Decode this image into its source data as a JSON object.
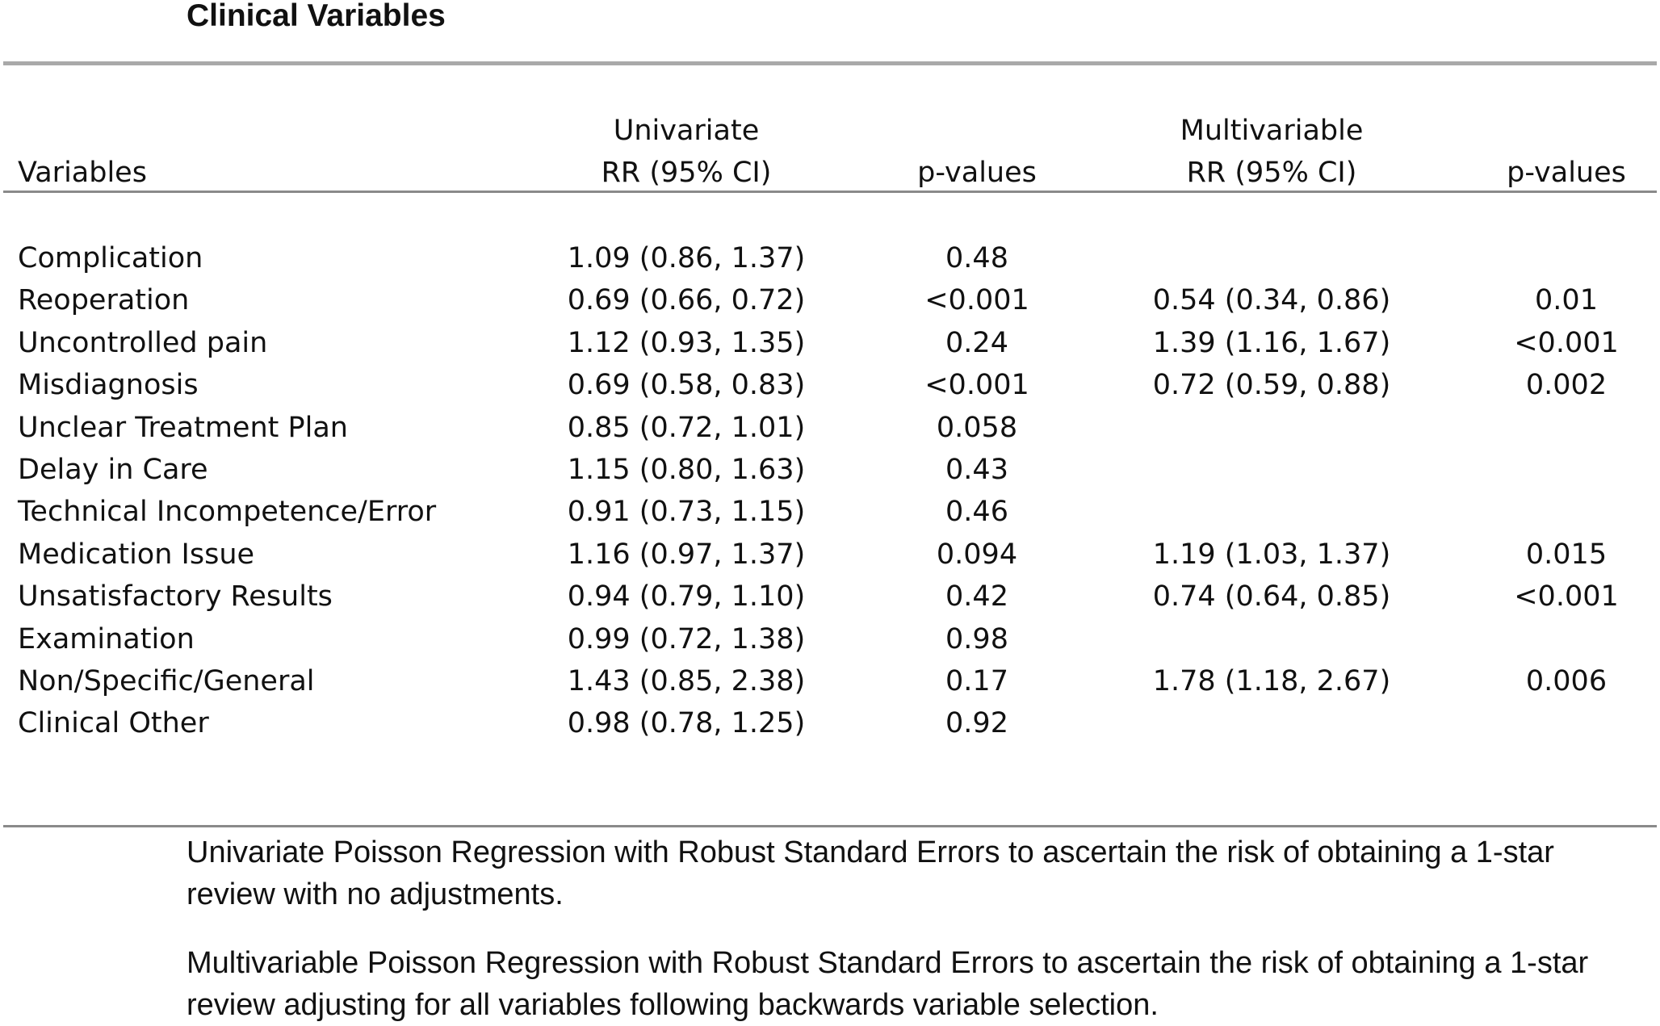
{
  "title": "Clinical Variables",
  "header": {
    "variables": "Variables",
    "univariate_top": "Univariate",
    "univariate_bottom": "RR (95% CI)",
    "p_values_1": "p-values",
    "multivariable_top": "Multivariable",
    "multivariable_bottom": "RR (95% CI)",
    "p_values_2": "p-values"
  },
  "rows": [
    {
      "name": "Complication",
      "uni": "1.09 (0.86, 1.37)",
      "p1": "0.48",
      "multi": "",
      "p2": ""
    },
    {
      "name": "Reoperation",
      "uni": "0.69 (0.66, 0.72)",
      "p1": "<0.001",
      "multi": "0.54 (0.34, 0.86)",
      "p2": "0.01"
    },
    {
      "name": "Uncontrolled pain",
      "uni": "1.12 (0.93, 1.35)",
      "p1": "0.24",
      "multi": "1.39 (1.16, 1.67)",
      "p2": "<0.001"
    },
    {
      "name": "Misdiagnosis",
      "uni": "0.69 (0.58, 0.83)",
      "p1": "<0.001",
      "multi": "0.72 (0.59, 0.88)",
      "p2": "0.002"
    },
    {
      "name": "Unclear Treatment Plan",
      "uni": "0.85 (0.72, 1.01)",
      "p1": "0.058",
      "multi": "",
      "p2": ""
    },
    {
      "name": "Delay in Care",
      "uni": "1.15 (0.80, 1.63)",
      "p1": "0.43",
      "multi": "",
      "p2": ""
    },
    {
      "name": "Technical Incompetence/Error",
      "uni": "0.91 (0.73, 1.15)",
      "p1": "0.46",
      "multi": "",
      "p2": ""
    },
    {
      "name": "Medication Issue",
      "uni": "1.16 (0.97, 1.37)",
      "p1": "0.094",
      "multi": "1.19 (1.03, 1.37)",
      "p2": "0.015"
    },
    {
      "name": "Unsatisfactory Results",
      "uni": "0.94 (0.79, 1.10)",
      "p1": "0.42",
      "multi": "0.74 (0.64, 0.85)",
      "p2": "<0.001"
    },
    {
      "name": "Examination",
      "uni": "0.99 (0.72, 1.38)",
      "p1": "0.98",
      "multi": "",
      "p2": ""
    },
    {
      "name": "Non/Specific/General",
      "uni": "1.43 (0.85, 2.38)",
      "p1": "0.17",
      "multi": "1.78 (1.18, 2.67)",
      "p2": "0.006"
    },
    {
      "name": "Clinical Other",
      "uni": "0.98 (0.78, 1.25)",
      "p1": "0.92",
      "multi": "",
      "p2": ""
    }
  ],
  "notes": {
    "univariate": "Univariate Poisson Regression with Robust Standard Errors to ascertain the risk of obtaining a 1-star review with no adjustments.",
    "multivariable": "Multivariable Poisson Regression with Robust Standard Errors to ascertain the risk of obtaining a 1-star review adjusting for all variables following backwards variable selection."
  }
}
